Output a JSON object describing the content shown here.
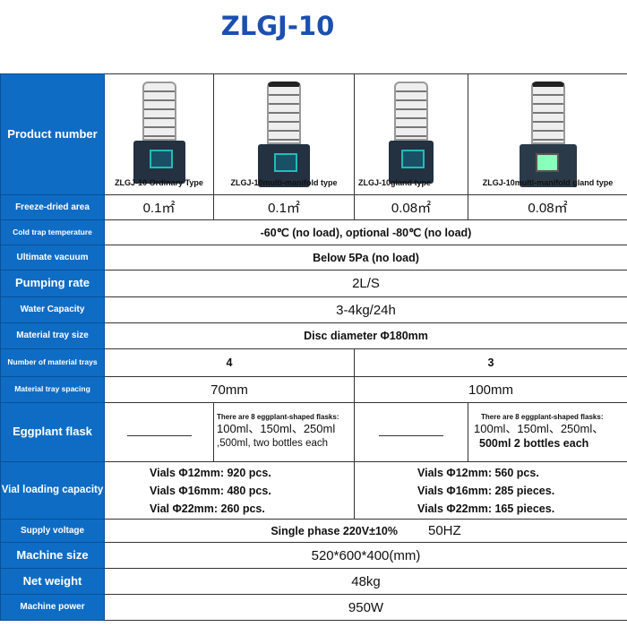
{
  "title": "ZLGJ-10",
  "colors": {
    "label_bg": "#0f6cc4",
    "title": "#1b4fb0"
  },
  "rows": {
    "product_number": {
      "label": "Product number",
      "models": [
        "ZLGJ-10 Ordinary Type",
        "ZLGJ-10multi-manifold type",
        "ZLGJ-10gland type",
        "ZLGJ-10multi-manifold gland type"
      ]
    },
    "freeze_dried_area": {
      "label": "Freeze-dried area",
      "values": [
        "0.1㎡",
        "0.1㎡",
        "0.08㎡",
        "0.08㎡"
      ]
    },
    "cold_trap": {
      "label": "Cold trap temperature",
      "value": "-60℃ (no load), optional -80℃ (no load)"
    },
    "ultimate_vacuum": {
      "label": "Ultimate vacuum",
      "value": "Below 5Pa (no load)"
    },
    "pumping_rate": {
      "label": "Pumping rate",
      "value": "2L/S"
    },
    "water_capacity": {
      "label": "Water Capacity",
      "value": "3-4kg/24h"
    },
    "tray_size": {
      "label": "Material tray size",
      "value": "Disc diameter Φ180mm"
    },
    "tray_number": {
      "label": "Number of material trays",
      "values": [
        "4",
        "3"
      ]
    },
    "tray_spacing": {
      "label": "Material tray spacing",
      "values": [
        "70mm",
        "100mm"
      ]
    },
    "eggplant_flask": {
      "label": "Eggplant flask",
      "empty": "———",
      "cells": [
        {
          "note": "There are 8 eggplant-shaped flasks:",
          "line1": "100ml、150ml、250ml",
          "line2": ",500ml, two bottles each"
        },
        {
          "note": "There are 8 eggplant-shaped flasks:",
          "line1": "100ml、150ml、250ml、",
          "line2": "500ml 2 bottles each"
        }
      ]
    },
    "vial_capacity": {
      "label": "Vial loading capacity",
      "groups": [
        [
          "Vials Φ12mm: 920 pcs.",
          "Vials Φ16mm: 480 pcs.",
          "Vial Φ22mm: 260 pcs."
        ],
        [
          "Vials Φ12mm: 560 pcs.",
          "Vials Φ16mm: 285 pieces.",
          "Vials Φ22mm: 165 pieces."
        ]
      ]
    },
    "supply_voltage": {
      "label": "Supply voltage",
      "value": "Single phase 220V±10%",
      "freq": "50HZ"
    },
    "machine_size": {
      "label": "Machine size",
      "value": "520*600*400(mm)"
    },
    "net_weight": {
      "label": "Net weight",
      "value": "48kg"
    },
    "machine_power": {
      "label": "Machine power",
      "value": "950W"
    }
  }
}
